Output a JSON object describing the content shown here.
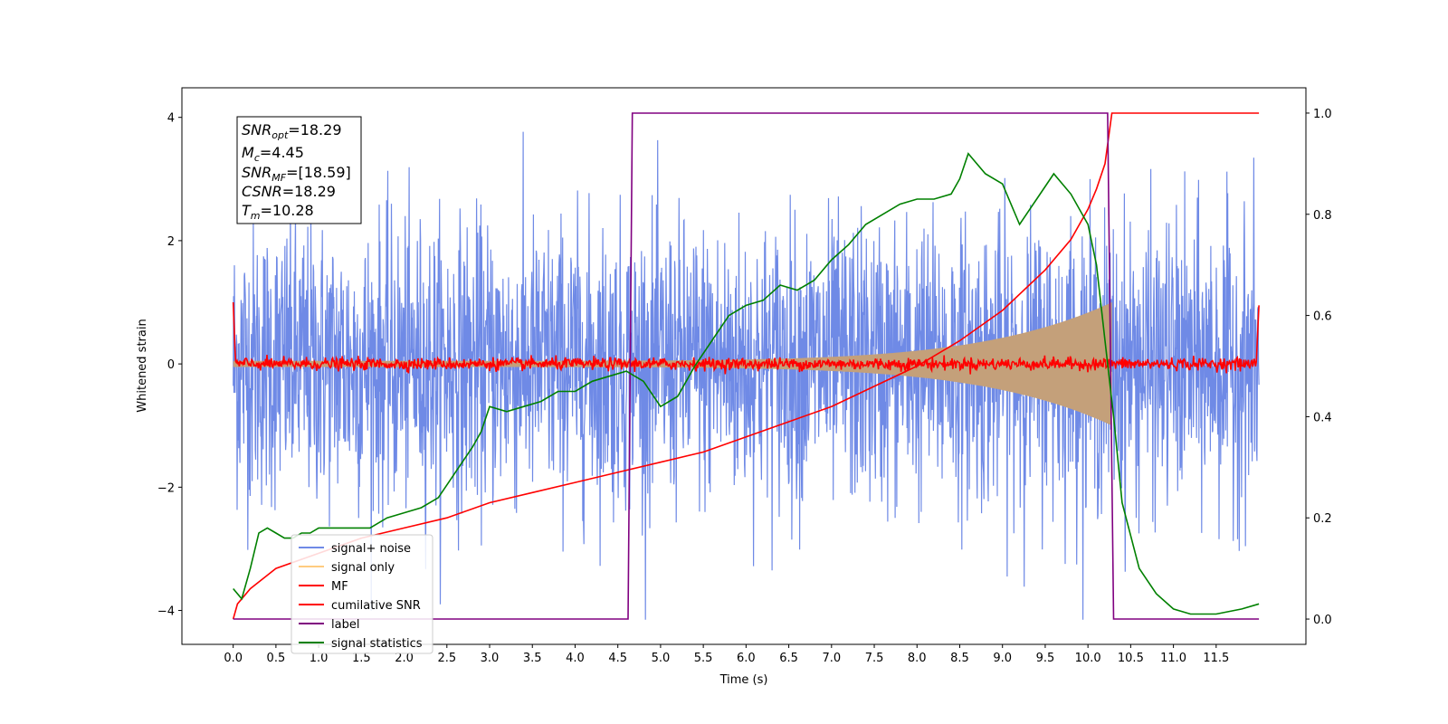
{
  "chart_data": {
    "type": "line",
    "xlabel": "Time (s)",
    "ylabel": "Whitened strain",
    "xlim": [
      -0.6,
      12.55
    ],
    "ylim_left": [
      -4.55,
      4.48
    ],
    "ylim_right": [
      -0.05,
      1.05
    ],
    "x_ticks": [
      "0.0",
      "0.5",
      "1.0",
      "1.5",
      "2.0",
      "2.5",
      "3.0",
      "3.5",
      "4.0",
      "4.5",
      "5.0",
      "5.5",
      "6.0",
      "6.5",
      "7.0",
      "7.5",
      "8.0",
      "8.5",
      "9.0",
      "9.5",
      "10.0",
      "10.5",
      "11.0",
      "11.5"
    ],
    "y_ticks_left": [
      "4",
      "2",
      "0",
      "−2",
      "−4"
    ],
    "y_ticks_right": [
      "1.0",
      "0.8",
      "0.6",
      "0.4",
      "0.2",
      "0.0"
    ],
    "annotation": {
      "line1": {
        "sym": "SNR",
        "sub": "opt",
        "val": "=18.29"
      },
      "line2": {
        "sym": "M",
        "sub": "c",
        "val": "=4.45"
      },
      "line3": {
        "sym": "SNR",
        "sub": "MF",
        "val": "=[18.59]"
      },
      "line4": {
        "sym": "CSNR",
        "sub": "",
        "val": "=18.29"
      },
      "line5": {
        "sym": "T",
        "sub": "m",
        "val": "=10.28"
      }
    },
    "legend": {
      "placement": "lower-left",
      "entries": [
        {
          "label": "signal+ noise",
          "color": "#6f8ae6"
        },
        {
          "label": "signal only",
          "color": "#ffcc80"
        },
        {
          "label": "MF",
          "color": "#ff0000"
        },
        {
          "label": "cumilative SNR",
          "color": "#ff0000"
        },
        {
          "label": "label",
          "color": "#800080"
        },
        {
          "label": "signal statistics",
          "color": "#008000"
        }
      ]
    },
    "series": [
      {
        "name": "signal+ noise",
        "axis": "left",
        "color": "#6f8ae6",
        "description": "whitened noise, std ~1.2, x 0 to 12"
      },
      {
        "name": "signal only",
        "axis": "left",
        "color": "#c4a07a",
        "description": "chirp envelope, amplitude rising from ~0.05 to ~1.0 at 10.28 s"
      },
      {
        "name": "MF",
        "axis": "left",
        "color": "#ff0000",
        "description": "matched filter output near 0, spikes ~1.0 at edges"
      },
      {
        "name": "cumilative SNR",
        "axis": "right",
        "x": [
          0.0,
          0.05,
          0.2,
          0.5,
          1.0,
          1.5,
          2.0,
          2.5,
          3.0,
          3.5,
          4.0,
          4.5,
          5.0,
          5.5,
          6.0,
          6.5,
          7.0,
          7.5,
          8.0,
          8.5,
          9.0,
          9.5,
          9.8,
          10.0,
          10.1,
          10.2,
          10.28,
          12.0
        ],
        "values": [
          0.0,
          0.03,
          0.06,
          0.1,
          0.13,
          0.16,
          0.18,
          0.2,
          0.23,
          0.25,
          0.27,
          0.29,
          0.31,
          0.33,
          0.36,
          0.39,
          0.42,
          0.46,
          0.5,
          0.55,
          0.61,
          0.69,
          0.75,
          0.81,
          0.85,
          0.9,
          1.0,
          1.0
        ]
      },
      {
        "name": "label",
        "axis": "right",
        "x": [
          0.0,
          4.62,
          4.67,
          10.23,
          10.3,
          12.0
        ],
        "values": [
          0.0,
          0.0,
          1.0,
          1.0,
          0.0,
          0.0
        ]
      },
      {
        "name": "signal statistics",
        "axis": "right",
        "x": [
          0.0,
          0.1,
          0.2,
          0.3,
          0.4,
          0.5,
          0.6,
          0.7,
          0.8,
          0.9,
          1.0,
          1.2,
          1.4,
          1.6,
          1.8,
          2.0,
          2.2,
          2.4,
          2.6,
          2.8,
          2.9,
          3.0,
          3.2,
          3.4,
          3.6,
          3.8,
          4.0,
          4.2,
          4.4,
          4.6,
          4.8,
          5.0,
          5.2,
          5.4,
          5.6,
          5.8,
          6.0,
          6.2,
          6.4,
          6.6,
          6.8,
          7.0,
          7.2,
          7.4,
          7.6,
          7.8,
          8.0,
          8.2,
          8.4,
          8.5,
          8.6,
          8.8,
          9.0,
          9.2,
          9.4,
          9.6,
          9.8,
          10.0,
          10.1,
          10.2,
          10.3,
          10.4,
          10.6,
          10.8,
          11.0,
          11.2,
          11.5,
          11.8,
          12.0
        ],
        "values": [
          0.06,
          0.04,
          0.1,
          0.17,
          0.18,
          0.17,
          0.16,
          0.16,
          0.17,
          0.17,
          0.18,
          0.18,
          0.18,
          0.18,
          0.2,
          0.21,
          0.22,
          0.24,
          0.29,
          0.34,
          0.37,
          0.42,
          0.41,
          0.42,
          0.43,
          0.45,
          0.45,
          0.47,
          0.48,
          0.49,
          0.47,
          0.42,
          0.44,
          0.5,
          0.55,
          0.6,
          0.62,
          0.63,
          0.66,
          0.65,
          0.67,
          0.71,
          0.74,
          0.78,
          0.8,
          0.82,
          0.83,
          0.83,
          0.84,
          0.87,
          0.92,
          0.88,
          0.86,
          0.78,
          0.83,
          0.88,
          0.84,
          0.78,
          0.7,
          0.55,
          0.4,
          0.23,
          0.1,
          0.05,
          0.02,
          0.01,
          0.01,
          0.02,
          0.03
        ]
      }
    ]
  }
}
